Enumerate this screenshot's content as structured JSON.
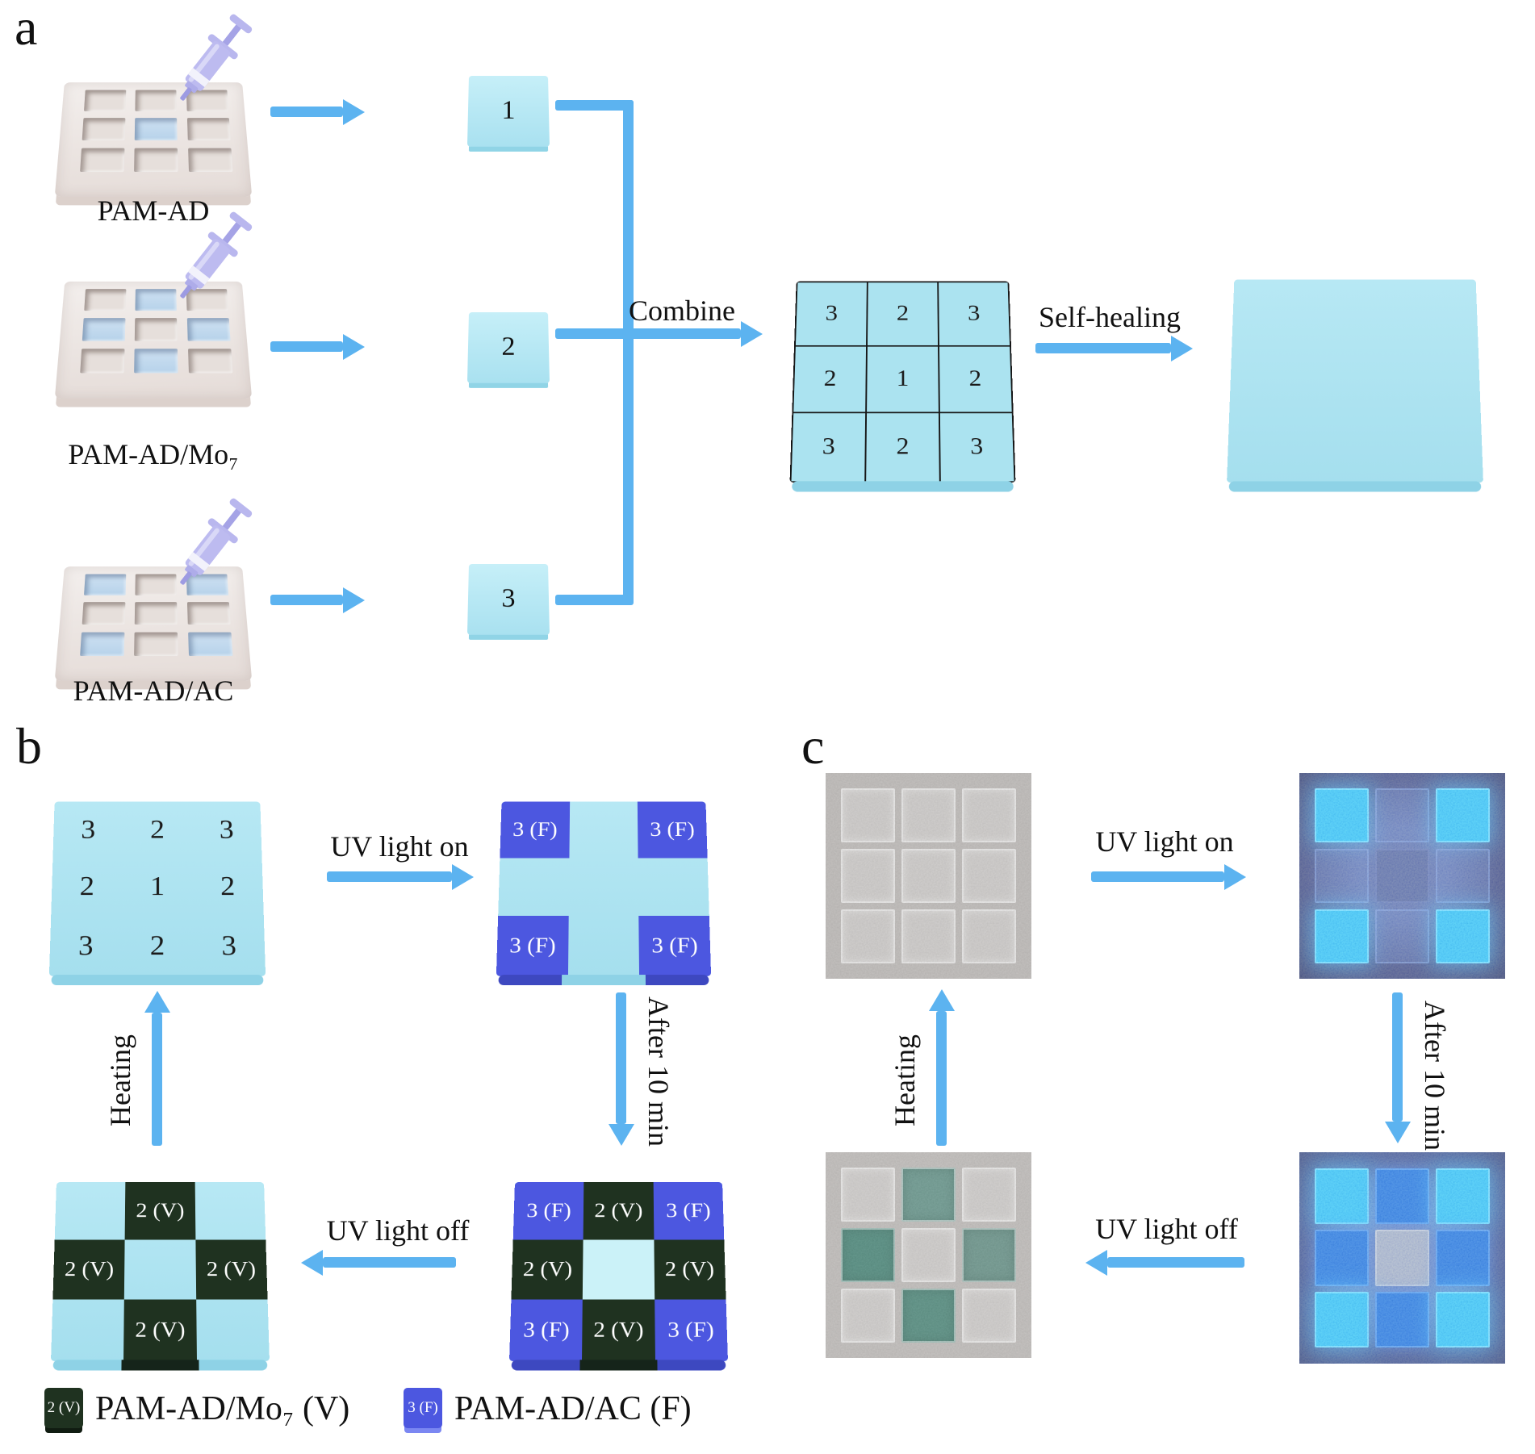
{
  "colors": {
    "arrow": "#5cb3f0",
    "fluor": "#4c57e0",
    "vis": "#1f3220",
    "slab": "#abe3f0",
    "slab-lite": "#cbf2f8"
  },
  "panel_a": {
    "label": "a",
    "molds": [
      {
        "label": "PAM-AD",
        "tile": "1",
        "wells": [
          "e",
          "e",
          "e",
          "e",
          "f",
          "e",
          "e",
          "e",
          "e"
        ]
      },
      {
        "label": "PAM-AD/Mo₇",
        "tile": "2",
        "wells": [
          "e",
          "f",
          "e",
          "f",
          "e",
          "f",
          "e",
          "f",
          "e"
        ]
      },
      {
        "label": "PAM-AD/AC",
        "tile": "3",
        "wells": [
          "f",
          "e",
          "f",
          "e",
          "e",
          "e",
          "f",
          "e",
          "f"
        ]
      }
    ],
    "combine_label": "Combine",
    "combined_grid": [
      {
        "t": "3"
      },
      {
        "t": "2"
      },
      {
        "t": "3"
      },
      {
        "t": "2"
      },
      {
        "t": "1"
      },
      {
        "t": "2"
      },
      {
        "t": "3"
      },
      {
        "t": "2"
      },
      {
        "t": "3"
      }
    ],
    "self_healing_label": "Self-healing"
  },
  "panel_b": {
    "label": "b",
    "healed_grid": [
      {
        "t": "3"
      },
      {
        "t": "2"
      },
      {
        "t": "3"
      },
      {
        "t": "2"
      },
      {
        "t": "1"
      },
      {
        "t": "2"
      },
      {
        "t": "3"
      },
      {
        "t": "2"
      },
      {
        "t": "3"
      }
    ],
    "uv_on_label": "UV light on",
    "uv_on_grid": [
      {
        "t": "3 (F)",
        "k": "fluor"
      },
      {},
      {
        "t": "3 (F)",
        "k": "fluor"
      },
      {},
      {},
      {},
      {
        "t": "3 (F)",
        "k": "fluor"
      },
      {},
      {
        "t": "3 (F)",
        "k": "fluor"
      }
    ],
    "after_label": "After 10 min",
    "after_grid": [
      {
        "t": "3 (F)",
        "k": "fluor"
      },
      {
        "t": "2 (V)",
        "k": "vis"
      },
      {
        "t": "3 (F)",
        "k": "fluor"
      },
      {
        "t": "2 (V)",
        "k": "vis"
      },
      {
        "k": "lite"
      },
      {
        "t": "2 (V)",
        "k": "vis"
      },
      {
        "t": "3 (F)",
        "k": "fluor"
      },
      {
        "t": "2 (V)",
        "k": "vis"
      },
      {
        "t": "3 (F)",
        "k": "fluor"
      }
    ],
    "uv_off_label": "UV light off",
    "uv_off_grid": [
      {},
      {
        "t": "2 (V)",
        "k": "vis"
      },
      {},
      {
        "t": "2 (V)",
        "k": "vis"
      },
      {},
      {
        "t": "2 (V)",
        "k": "vis"
      },
      {},
      {
        "t": "2 (V)",
        "k": "vis"
      },
      {}
    ],
    "heating_label": "Heating",
    "legend": [
      {
        "swatch": "2 (V)",
        "label": "PAM-AD/Mo₇ (V)"
      },
      {
        "swatch": "3 (F)",
        "label": "PAM-AD/AC (F)"
      }
    ]
  },
  "panel_c": {
    "label": "c",
    "uv_on_label": "UV light on",
    "after_label": "After 10 min",
    "uv_off_label": "UV light off",
    "heating_label": "Heating",
    "photos": {
      "initial": [
        {
          "k": "ghost"
        },
        {
          "k": "ghost"
        },
        {
          "k": "ghost"
        },
        {
          "k": "ghost"
        },
        {
          "k": "ghost"
        },
        {
          "k": "ghost"
        },
        {
          "k": "ghost"
        },
        {
          "k": "ghost"
        },
        {
          "k": "ghost"
        }
      ],
      "uv_on": [
        {
          "k": "cyan"
        },
        {
          "k": "dim"
        },
        {
          "k": "cyan"
        },
        {
          "k": "dim"
        },
        {
          "k": "dimc"
        },
        {
          "k": "dim"
        },
        {
          "k": "cyan"
        },
        {
          "k": "dim"
        },
        {
          "k": "cyan"
        }
      ],
      "after": [
        {
          "k": "cyan"
        },
        {
          "k": "deep"
        },
        {
          "k": "cyan"
        },
        {
          "k": "deep"
        },
        {
          "k": "grayc"
        },
        {
          "k": "deep"
        },
        {
          "k": "cyan"
        },
        {
          "k": "deep"
        },
        {
          "k": "cyan"
        }
      ],
      "uv_off": [
        {
          "k": "ghost"
        },
        {
          "k": "grnA"
        },
        {
          "k": "ghost"
        },
        {
          "k": "grnB"
        },
        {
          "k": "ghost"
        },
        {
          "k": "grnC"
        },
        {
          "k": "ghost"
        },
        {
          "k": "grnD"
        },
        {
          "k": "ghost"
        }
      ]
    }
  }
}
